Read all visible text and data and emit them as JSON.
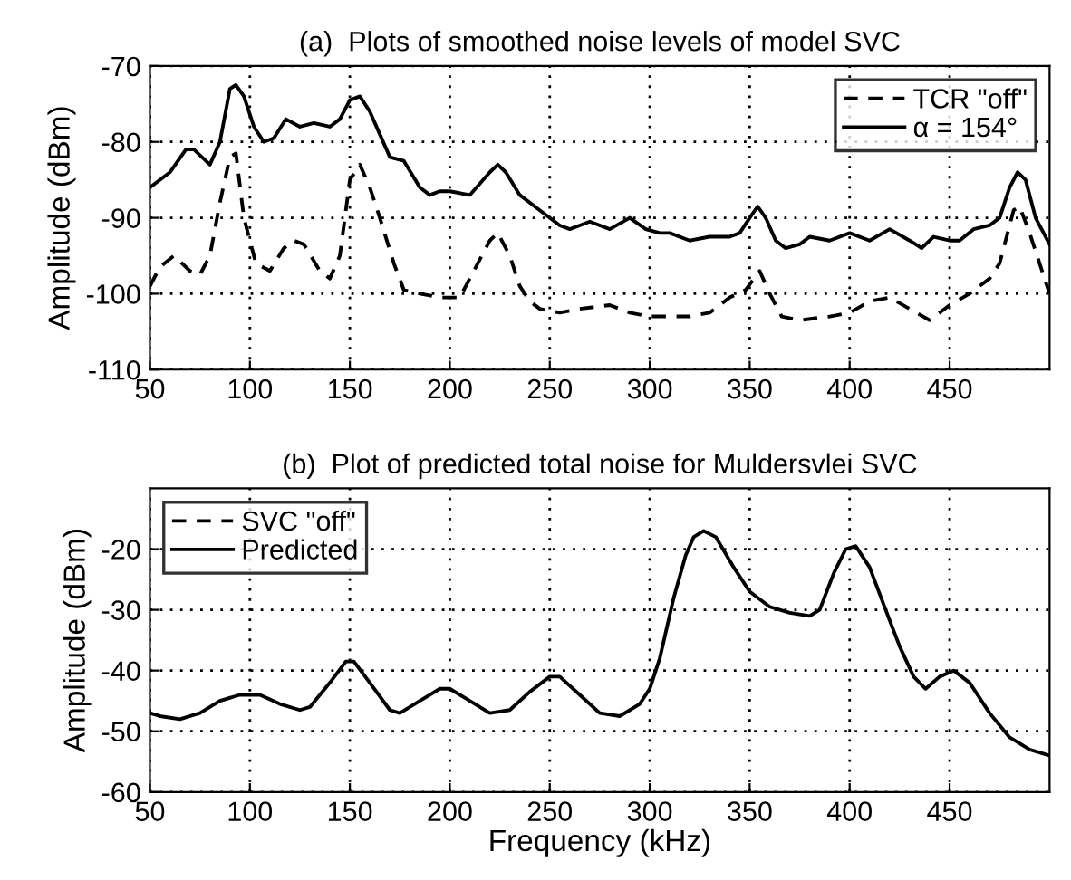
{
  "chart_data": [
    {
      "type": "line",
      "title": "(a)  Plots of smoothed noise levels of model SVC",
      "ylabel": "Amplitude (dBm)",
      "xlim": [
        50,
        500
      ],
      "xticks": [
        50,
        100,
        150,
        200,
        250,
        300,
        350,
        400,
        450
      ],
      "ylim": [
        -110,
        -70
      ],
      "yticks": [
        -110,
        -100,
        -90,
        -80,
        -70
      ],
      "grid": true,
      "legend": "top right",
      "series": [
        {
          "name": "TCR \"off\"",
          "color": "#000000",
          "line_style": "dashed",
          "x": [
            50,
            55,
            62,
            70,
            75,
            80,
            85,
            90,
            93,
            97,
            103,
            110,
            117,
            122,
            127,
            135,
            140,
            145,
            150,
            155,
            160,
            165,
            172,
            177,
            185,
            195,
            205,
            212,
            220,
            224,
            230,
            235,
            240,
            245,
            255,
            265,
            280,
            290,
            300,
            320,
            330,
            340,
            348,
            355,
            360,
            366,
            375,
            390,
            400,
            410,
            420,
            430,
            440,
            450,
            460,
            470,
            475,
            482,
            485,
            490,
            495,
            500
          ],
          "values": [
            -99,
            -96.5,
            -95,
            -97,
            -97.5,
            -95,
            -88,
            -82,
            -81.5,
            -90,
            -96,
            -97,
            -94,
            -93,
            -93.5,
            -97,
            -98,
            -95,
            -85,
            -83,
            -86,
            -90,
            -96,
            -99.5,
            -100,
            -100.5,
            -100.5,
            -97,
            -93,
            -92,
            -95,
            -99,
            -101,
            -102,
            -102.5,
            -102,
            -101.5,
            -102.5,
            -103,
            -103,
            -102.5,
            -100.5,
            -99.5,
            -97,
            -100,
            -103,
            -103.5,
            -103,
            -102.5,
            -101,
            -100.5,
            -102,
            -103.5,
            -101.5,
            -100,
            -98,
            -96,
            -89,
            -88.5,
            -92,
            -96,
            -100
          ]
        },
        {
          "name": "α = 154°",
          "color": "#000000",
          "line_style": "solid",
          "x": [
            50,
            60,
            68,
            72,
            80,
            85,
            90,
            93,
            97,
            102,
            107,
            112,
            118,
            125,
            132,
            140,
            145,
            150,
            155,
            160,
            165,
            170,
            177,
            185,
            190,
            195,
            200,
            210,
            220,
            224,
            228,
            235,
            245,
            255,
            260,
            265,
            270,
            280,
            290,
            298,
            305,
            310,
            320,
            330,
            340,
            345,
            350,
            354,
            358,
            363,
            368,
            375,
            380,
            390,
            400,
            410,
            420,
            430,
            436,
            442,
            450,
            455,
            462,
            470,
            475,
            480,
            484,
            488,
            493,
            500
          ],
          "values": [
            -86,
            -84,
            -81,
            -81,
            -83,
            -80,
            -73,
            -72.5,
            -74,
            -78,
            -80,
            -79.5,
            -77,
            -78,
            -77.5,
            -78,
            -77,
            -74.5,
            -74,
            -76,
            -79,
            -82,
            -82.5,
            -86,
            -87,
            -86.5,
            -86.5,
            -87,
            -84,
            -83,
            -84,
            -87,
            -89,
            -91,
            -91.5,
            -91,
            -90.5,
            -91.5,
            -90,
            -91.5,
            -92,
            -92,
            -93,
            -92.5,
            -92.5,
            -92,
            -90,
            -88.5,
            -90,
            -93,
            -94,
            -93.5,
            -92.5,
            -93,
            -92,
            -93,
            -91.5,
            -93,
            -94,
            -92.5,
            -93,
            -93,
            -91.5,
            -91,
            -90,
            -86,
            -84,
            -85,
            -90,
            -93.5
          ]
        }
      ]
    },
    {
      "type": "line",
      "title": "(b)  Plot of predicted total noise for Muldersvlei SVC",
      "xlabel": "Frequency (kHz)",
      "ylabel": "Amplitude (dBm)",
      "xlim": [
        50,
        500
      ],
      "xticks": [
        50,
        100,
        150,
        200,
        250,
        300,
        350,
        400,
        450
      ],
      "ylim": [
        -60,
        -10
      ],
      "yticks": [
        -60,
        -50,
        -40,
        -30,
        -20
      ],
      "grid": true,
      "legend": "top left",
      "series": [
        {
          "name": "SVC \"off\"",
          "color": "#000000",
          "line_style": "dashed"
        },
        {
          "name": "Predicted",
          "color": "#000000",
          "line_style": "solid",
          "x": [
            50,
            55,
            65,
            75,
            85,
            95,
            105,
            115,
            125,
            130,
            140,
            148,
            152,
            160,
            170,
            175,
            185,
            195,
            200,
            210,
            220,
            230,
            240,
            250,
            255,
            265,
            275,
            285,
            295,
            300,
            305,
            312,
            318,
            322,
            327,
            333,
            342,
            350,
            360,
            370,
            380,
            385,
            392,
            398,
            403,
            410,
            418,
            425,
            432,
            438,
            445,
            452,
            460,
            470,
            480,
            490,
            500
          ],
          "values": [
            -47,
            -47.5,
            -48,
            -47,
            -45,
            -44,
            -44,
            -45.5,
            -46.5,
            -46,
            -42,
            -38.5,
            -38.5,
            -42,
            -46.5,
            -47,
            -45,
            -43,
            -43,
            -45,
            -47,
            -46.5,
            -43.5,
            -41,
            -41,
            -44,
            -47,
            -47.5,
            -45.5,
            -43,
            -38,
            -28,
            -21,
            -18,
            -17,
            -18,
            -23,
            -27,
            -29.5,
            -30.5,
            -31,
            -30,
            -24,
            -20,
            -19.5,
            -23,
            -30,
            -36,
            -41,
            -43,
            -41,
            -40,
            -42,
            -47,
            -51,
            -53,
            -54
          ]
        }
      ]
    }
  ]
}
